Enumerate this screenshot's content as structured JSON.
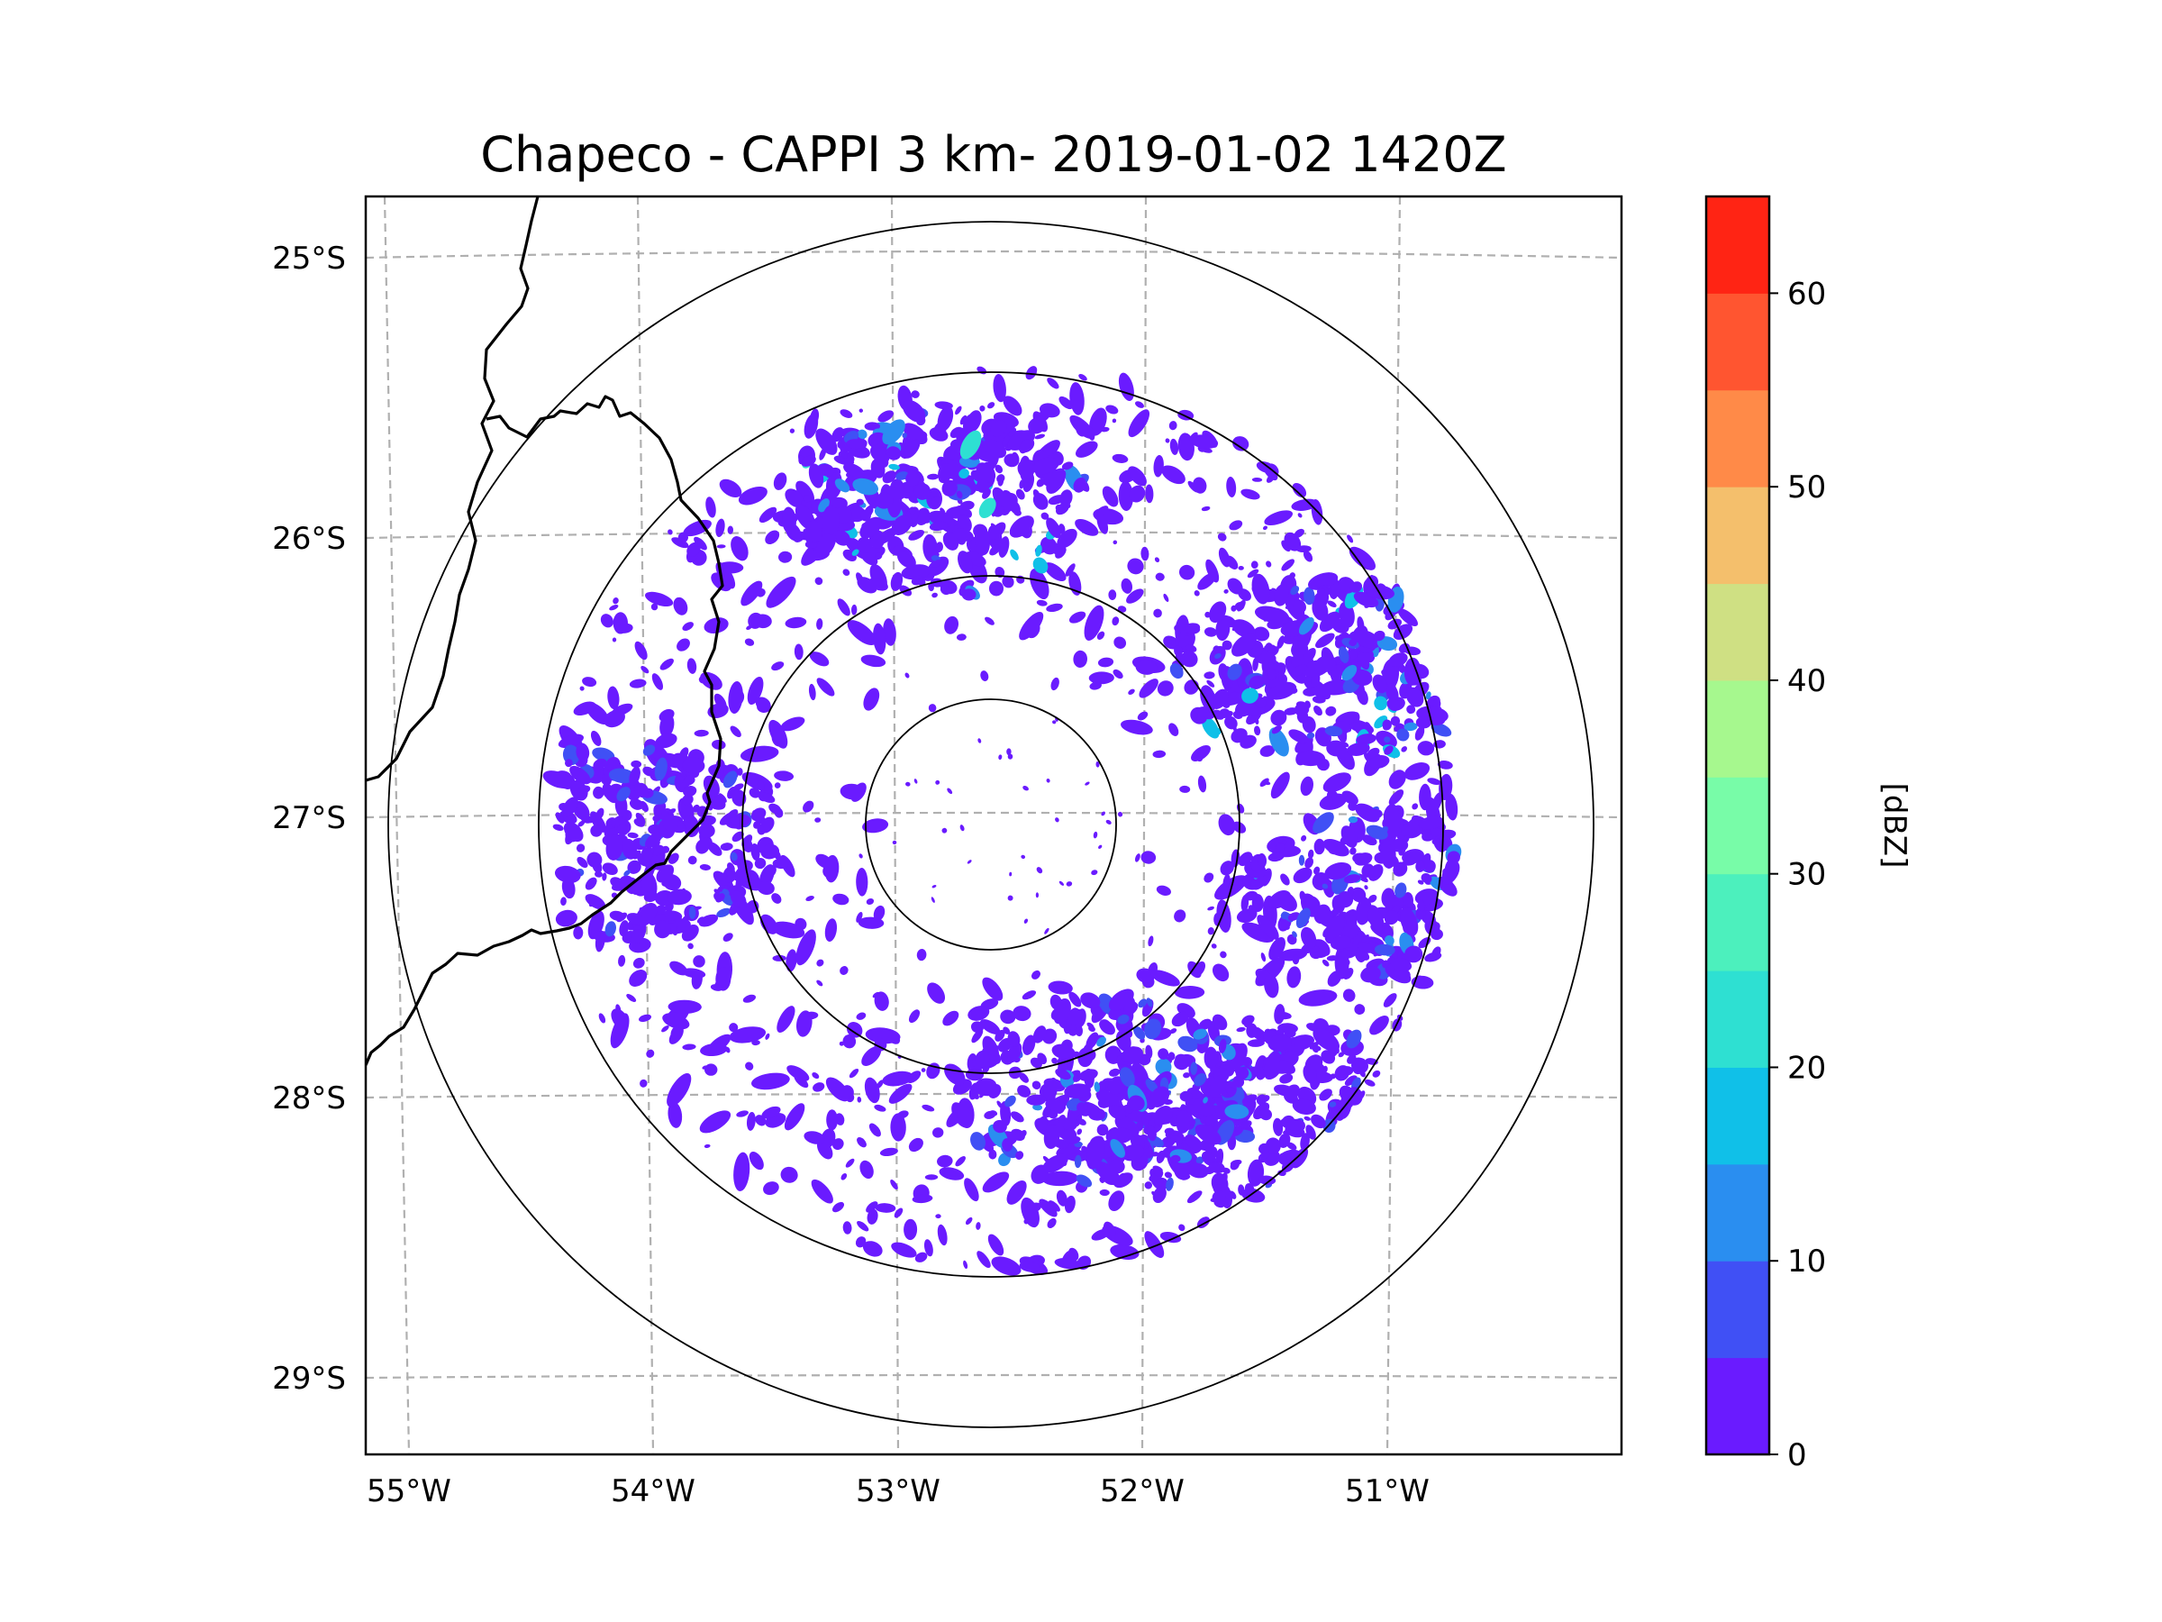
{
  "title": "Chapeco - CAPPI 3 km- 2019-01-02 1420Z",
  "map": {
    "radar_name": "Chapeco",
    "product": "CAPPI 3 km",
    "datetime": "2019-01-02 1420Z",
    "extent": {
      "lon": [
        -55.2,
        -50.1
      ],
      "lat": [
        -29.3,
        -24.8
      ]
    },
    "radar_center": {
      "lon": -52.6,
      "lat": -27.03
    },
    "lon_ticks": [
      {
        "value": -55,
        "label": "55°W"
      },
      {
        "value": -54,
        "label": "54°W"
      },
      {
        "value": -53,
        "label": "53°W"
      },
      {
        "value": -52,
        "label": "52°W"
      },
      {
        "value": -51,
        "label": "51°W"
      }
    ],
    "lat_ticks": [
      {
        "value": -25,
        "label": "25°S"
      },
      {
        "value": -26,
        "label": "26°S"
      },
      {
        "value": -27,
        "label": "27°S"
      },
      {
        "value": -28,
        "label": "28°S"
      },
      {
        "value": -29,
        "label": "29°S"
      }
    ],
    "range_rings_km": [
      50,
      100,
      150,
      200
    ],
    "echo_regions": [
      {
        "name": "north-band",
        "lon": -52.9,
        "lat": -25.9,
        "max_dbz": 22
      },
      {
        "name": "northeast-cluster",
        "lon": -51.3,
        "lat": -26.5,
        "max_dbz": 20
      },
      {
        "name": "east-sector",
        "lon": -51.0,
        "lat": -27.3,
        "max_dbz": 12
      },
      {
        "name": "southeast-cluster",
        "lon": -51.5,
        "lat": -28.1,
        "max_dbz": 10
      },
      {
        "name": "south-band",
        "lon": -52.2,
        "lat": -28.0,
        "max_dbz": 14
      },
      {
        "name": "west-sector",
        "lon": -54.1,
        "lat": -27.1,
        "max_dbz": 8
      }
    ]
  },
  "colorbar": {
    "label": "[dBZ]",
    "ticks": [
      {
        "value": 0,
        "label": "0"
      },
      {
        "value": 10,
        "label": "10"
      },
      {
        "value": 20,
        "label": "20"
      },
      {
        "value": 30,
        "label": "30"
      },
      {
        "value": 40,
        "label": "40"
      },
      {
        "value": 50,
        "label": "50"
      },
      {
        "value": 60,
        "label": "60"
      }
    ],
    "levels": [
      0,
      5,
      10,
      15,
      20,
      25,
      30,
      35,
      40,
      45,
      50,
      55,
      60,
      65
    ],
    "colors": [
      "#6a1bff",
      "#4050f5",
      "#2a8ef0",
      "#10c0e8",
      "#2ee0d2",
      "#4cf0bd",
      "#78fca8",
      "#a6f88e",
      "#cfe083",
      "#f4bf6c",
      "#ff8a48",
      "#ff5530",
      "#ff2414"
    ]
  },
  "colors": {
    "grid": "#b0b0b0",
    "border": "#000000",
    "echo_base": "#6a1bff"
  }
}
